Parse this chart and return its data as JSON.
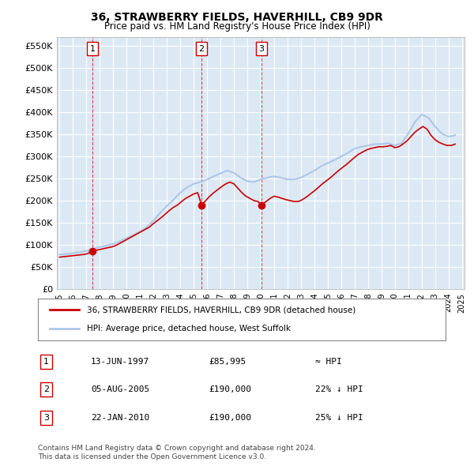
{
  "title": "36, STRAWBERRY FIELDS, HAVERHILL, CB9 9DR",
  "subtitle": "Price paid vs. HM Land Registry's House Price Index (HPI)",
  "hpi_color": "#aec6e8",
  "price_color": "#cc0000",
  "background_color": "#dce9f5",
  "plot_bg_color": "#dce9f5",
  "ylim": [
    0,
    570000
  ],
  "yticks": [
    0,
    50000,
    100000,
    150000,
    200000,
    250000,
    300000,
    350000,
    400000,
    450000,
    500000,
    550000
  ],
  "ylabel_format": "£{0}K",
  "transactions": [
    {
      "date_num": 1997.45,
      "price": 85995,
      "label": "1",
      "hpi_diff": "≈ HPI",
      "date_str": "13-JUN-1997",
      "price_str": "£85,995"
    },
    {
      "date_num": 2005.59,
      "price": 190000,
      "label": "2",
      "hpi_diff": "22% ↓ HPI",
      "date_str": "05-AUG-2005",
      "price_str": "£190,000"
    },
    {
      "date_num": 2010.06,
      "price": 190000,
      "label": "3",
      "hpi_diff": "25% ↓ HPI",
      "date_str": "22-JAN-2010",
      "price_str": "£190,000"
    }
  ],
  "legend_line1": "36, STRAWBERRY FIELDS, HAVERHILL, CB9 9DR (detached house)",
  "legend_line2": "HPI: Average price, detached house, West Suffolk",
  "footer": "Contains HM Land Registry data © Crown copyright and database right 2024.\nThis data is licensed under the Open Government Licence v3.0.",
  "hpi_data_x": [
    1995.0,
    1995.5,
    1996.0,
    1996.5,
    1997.0,
    1997.5,
    1998.0,
    1998.5,
    1999.0,
    1999.5,
    2000.0,
    2000.5,
    2001.0,
    2001.5,
    2002.0,
    2002.5,
    2003.0,
    2003.5,
    2004.0,
    2004.5,
    2005.0,
    2005.5,
    2006.0,
    2006.5,
    2007.0,
    2007.5,
    2008.0,
    2008.5,
    2009.0,
    2009.5,
    2010.0,
    2010.5,
    2011.0,
    2011.5,
    2012.0,
    2012.5,
    2013.0,
    2013.5,
    2014.0,
    2014.5,
    2015.0,
    2015.5,
    2016.0,
    2016.5,
    2017.0,
    2017.5,
    2018.0,
    2018.5,
    2019.0,
    2019.5,
    2020.0,
    2020.5,
    2021.0,
    2021.5,
    2022.0,
    2022.5,
    2023.0,
    2023.5,
    2024.0,
    2024.5
  ],
  "hpi_data_y": [
    78000,
    79000,
    81000,
    83000,
    86000,
    90000,
    95000,
    98000,
    102000,
    108000,
    115000,
    122000,
    130000,
    140000,
    155000,
    172000,
    188000,
    202000,
    218000,
    230000,
    238000,
    242000,
    248000,
    255000,
    262000,
    268000,
    263000,
    252000,
    244000,
    242000,
    248000,
    252000,
    255000,
    252000,
    248000,
    248000,
    252000,
    260000,
    268000,
    278000,
    285000,
    292000,
    300000,
    308000,
    318000,
    322000,
    325000,
    328000,
    328000,
    330000,
    325000,
    330000,
    352000,
    378000,
    395000,
    388000,
    368000,
    352000,
    345000,
    348000
  ],
  "price_data_x": [
    1995.0,
    1995.3,
    1995.6,
    1995.9,
    1996.2,
    1996.5,
    1996.8,
    1997.1,
    1997.45,
    1997.8,
    1998.1,
    1998.4,
    1998.7,
    1999.0,
    1999.3,
    1999.6,
    1999.9,
    2000.2,
    2000.5,
    2000.8,
    2001.1,
    2001.4,
    2001.7,
    2002.0,
    2002.3,
    2002.6,
    2002.9,
    2003.2,
    2003.5,
    2003.8,
    2004.1,
    2004.4,
    2004.7,
    2005.0,
    2005.3,
    2005.59,
    2005.9,
    2006.2,
    2006.5,
    2006.8,
    2007.1,
    2007.4,
    2007.7,
    2008.0,
    2008.3,
    2008.6,
    2008.9,
    2009.2,
    2009.5,
    2009.8,
    2010.06,
    2010.4,
    2010.7,
    2011.0,
    2011.3,
    2011.6,
    2011.9,
    2012.2,
    2012.5,
    2012.8,
    2013.1,
    2013.4,
    2013.7,
    2014.0,
    2014.3,
    2014.6,
    2014.9,
    2015.2,
    2015.5,
    2015.8,
    2016.1,
    2016.4,
    2016.7,
    2017.0,
    2017.3,
    2017.6,
    2017.9,
    2018.2,
    2018.5,
    2018.8,
    2019.1,
    2019.4,
    2019.7,
    2020.0,
    2020.3,
    2020.6,
    2020.9,
    2021.2,
    2021.5,
    2021.8,
    2022.1,
    2022.4,
    2022.7,
    2023.0,
    2023.3,
    2023.6,
    2023.9,
    2024.2,
    2024.5
  ],
  "price_data_y": [
    72000,
    73000,
    74000,
    75000,
    76000,
    77000,
    78000,
    80000,
    85995,
    88000,
    90000,
    92000,
    94000,
    96000,
    100000,
    105000,
    110000,
    115000,
    120000,
    125000,
    130000,
    135000,
    140000,
    148000,
    155000,
    162000,
    170000,
    178000,
    185000,
    190000,
    198000,
    205000,
    210000,
    215000,
    218000,
    190000,
    200000,
    210000,
    218000,
    225000,
    232000,
    238000,
    242000,
    238000,
    228000,
    218000,
    210000,
    205000,
    200000,
    198000,
    190000,
    198000,
    205000,
    210000,
    208000,
    205000,
    202000,
    200000,
    198000,
    198000,
    202000,
    208000,
    215000,
    222000,
    230000,
    238000,
    245000,
    252000,
    260000,
    268000,
    275000,
    282000,
    290000,
    298000,
    305000,
    310000,
    315000,
    318000,
    320000,
    322000,
    322000,
    323000,
    325000,
    320000,
    322000,
    328000,
    335000,
    345000,
    355000,
    362000,
    368000,
    362000,
    348000,
    338000,
    332000,
    328000,
    325000,
    325000,
    328000
  ]
}
